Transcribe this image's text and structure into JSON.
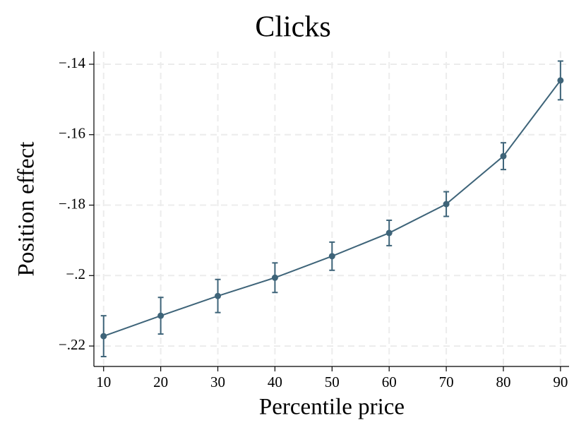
{
  "chart_data": {
    "type": "errorline",
    "title": "Clicks",
    "x_label": "Percentile price",
    "y_label": "Position effect",
    "x": [
      10,
      20,
      30,
      40,
      50,
      60,
      70,
      80,
      90
    ],
    "series": [
      {
        "color": "#3e6479",
        "values": [
          -0.2172,
          -0.2114,
          -0.2058,
          -0.2006,
          -0.1945,
          -0.1879,
          -0.1797,
          -0.1661,
          -0.1446
        ],
        "errors": [
          0.0058,
          0.0052,
          0.0047,
          0.0042,
          0.004,
          0.0036,
          0.0035,
          0.0038,
          0.0055
        ]
      }
    ],
    "xlim": [
      8.3,
      91.5
    ],
    "xticks": [
      10,
      20,
      30,
      40,
      50,
      60,
      70,
      80,
      90
    ],
    "ylim": [
      -0.2258,
      -0.1364
    ],
    "yticks": [
      {
        "value": -0.22,
        "label": "−.22"
      },
      {
        "value": -0.2,
        "label": "−.2"
      },
      {
        "value": -0.18,
        "label": "−.18"
      },
      {
        "value": -0.16,
        "label": "−.16"
      },
      {
        "value": -0.14,
        "label": "−.14"
      }
    ],
    "grid": true
  }
}
